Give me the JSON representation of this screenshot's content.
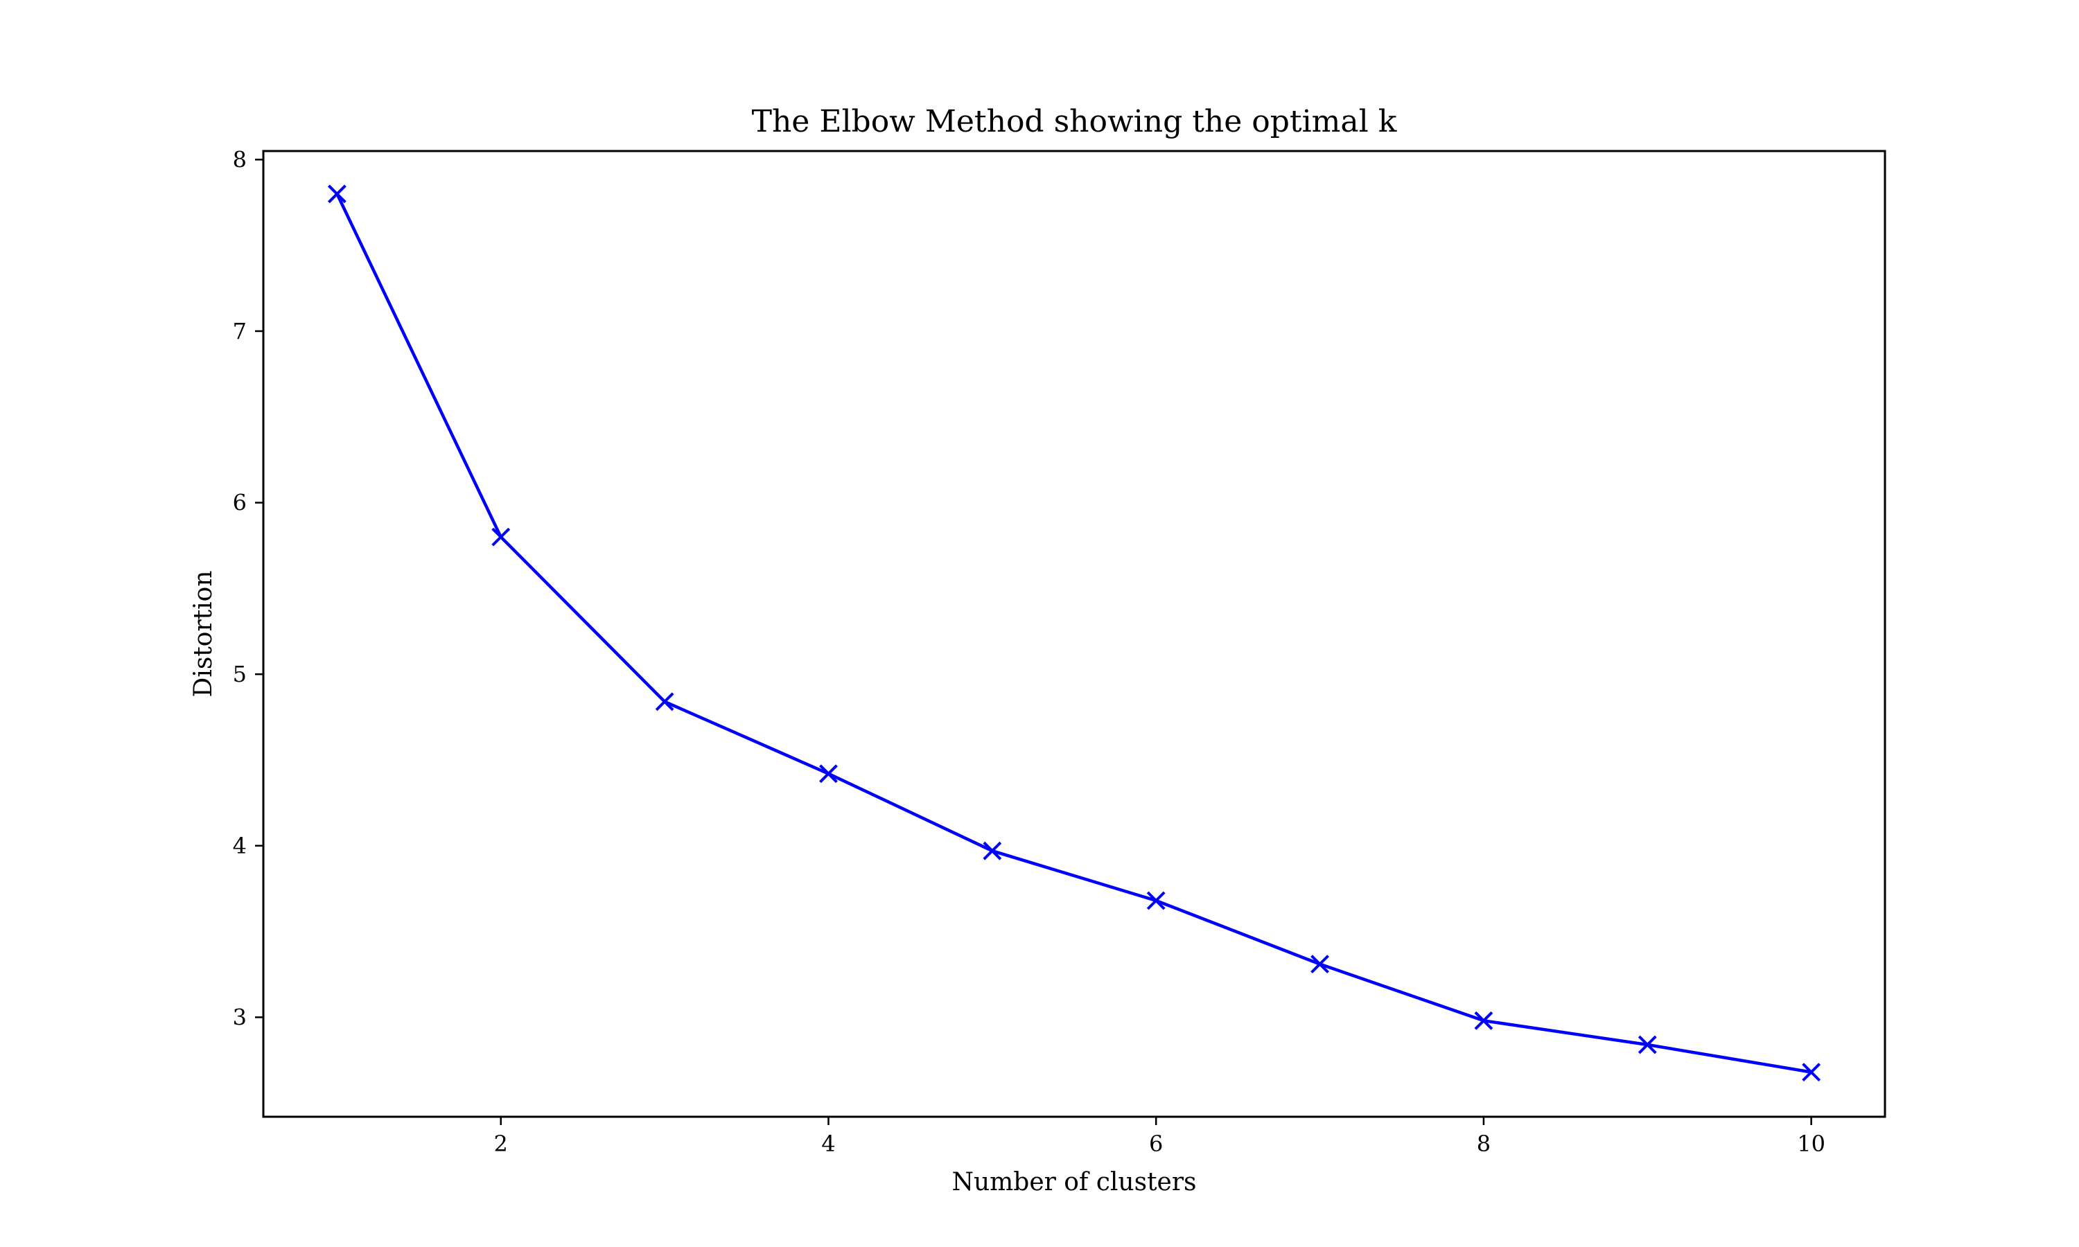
{
  "chart_data": {
    "type": "line",
    "title": "The Elbow Method showing the optimal k",
    "xlabel": "Number of clusters",
    "ylabel": "Distortion",
    "xlim": [
      0.55,
      10.45
    ],
    "ylim": [
      2.42,
      8.05
    ],
    "xticks": [
      2,
      4,
      6,
      8,
      10
    ],
    "yticks": [
      3,
      4,
      5,
      6,
      7,
      8
    ],
    "grid": false,
    "legend": "none",
    "series": [
      {
        "color": "#0000ff",
        "marker": "x",
        "x": [
          1,
          2,
          3,
          4,
          5,
          6,
          7,
          8,
          9,
          10
        ],
        "y": [
          7.8,
          5.8,
          4.84,
          4.42,
          3.97,
          3.68,
          3.31,
          2.98,
          2.84,
          2.68
        ]
      }
    ]
  }
}
